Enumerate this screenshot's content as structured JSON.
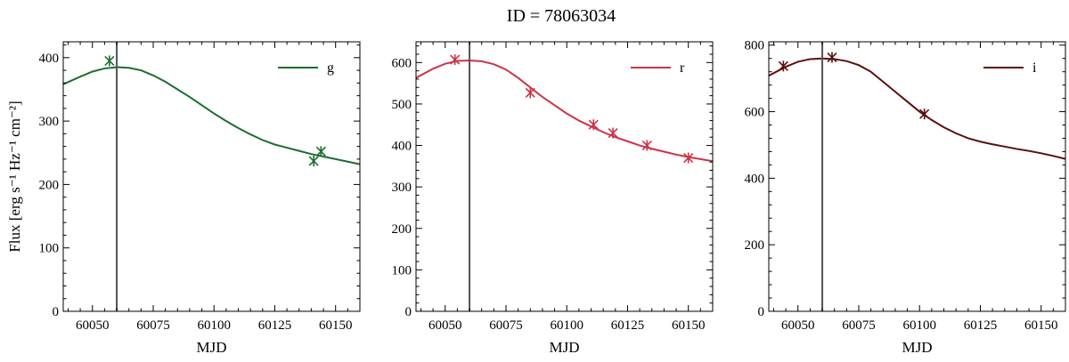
{
  "figure": {
    "title": "ID = 78063034"
  },
  "chart_data": [
    {
      "type": "line",
      "band": "g",
      "color": "#1b6e2f",
      "xlabel": "MJD",
      "ylabel": "Flux [erg s⁻¹ Hz⁻¹ cm⁻²]",
      "xlim": [
        60038,
        60160
      ],
      "ylim": [
        0,
        425
      ],
      "xticks": [
        60050,
        60075,
        60100,
        60125,
        60150
      ],
      "yticks": [
        0,
        100,
        200,
        300,
        400
      ],
      "peak_mjd": 60060,
      "legend": "g",
      "legend_position": "top-right",
      "grid": false,
      "model": {
        "x": [
          60038,
          60045,
          60050,
          60055,
          60060,
          60065,
          60070,
          60075,
          60080,
          60085,
          60090,
          60095,
          60100,
          60105,
          60110,
          60115,
          60120,
          60125,
          60130,
          60135,
          60140,
          60145,
          60150,
          60155,
          60160
        ],
        "y": [
          358,
          370,
          378,
          383,
          385,
          384,
          380,
          372,
          362,
          350,
          338,
          325,
          312,
          300,
          289,
          279,
          270,
          263,
          258,
          253,
          248,
          244,
          240,
          236,
          232
        ]
      },
      "observations": [
        {
          "x": 60057,
          "y": 395
        },
        {
          "x": 60141,
          "y": 237
        },
        {
          "x": 60144,
          "y": 252
        }
      ]
    },
    {
      "type": "line",
      "band": "r",
      "color": "#cc3344",
      "xlabel": "MJD",
      "ylabel": "",
      "xlim": [
        60038,
        60160
      ],
      "ylim": [
        0,
        650
      ],
      "xticks": [
        60050,
        60075,
        60100,
        60125,
        60150
      ],
      "yticks": [
        0,
        100,
        200,
        300,
        400,
        500,
        600
      ],
      "peak_mjd": 60060,
      "legend": "r",
      "legend_position": "top-right",
      "grid": false,
      "model": {
        "x": [
          60038,
          60045,
          60050,
          60055,
          60060,
          60065,
          60070,
          60075,
          60080,
          60085,
          60090,
          60095,
          60100,
          60105,
          60110,
          60115,
          60120,
          60125,
          60130,
          60135,
          60140,
          60145,
          60150,
          60155,
          60160
        ],
        "y": [
          563,
          585,
          597,
          604,
          605,
          603,
          596,
          583,
          563,
          540,
          517,
          497,
          477,
          460,
          446,
          432,
          420,
          410,
          400,
          392,
          385,
          378,
          372,
          367,
          362
        ]
      },
      "observations": [
        {
          "x": 60054,
          "y": 607
        },
        {
          "x": 60085,
          "y": 527
        },
        {
          "x": 60111,
          "y": 450
        },
        {
          "x": 60119,
          "y": 430
        },
        {
          "x": 60133,
          "y": 400
        },
        {
          "x": 60150,
          "y": 370
        }
      ]
    },
    {
      "type": "line",
      "band": "i",
      "color": "#5c0f0b",
      "xlabel": "MJD",
      "ylabel": "",
      "xlim": [
        60038,
        60160
      ],
      "ylim": [
        0,
        810
      ],
      "xticks": [
        60050,
        60075,
        60100,
        60125,
        60150
      ],
      "yticks": [
        0,
        200,
        400,
        600,
        800
      ],
      "peak_mjd": 60060,
      "legend": "i",
      "legend_position": "top-right",
      "grid": false,
      "model": {
        "x": [
          60038,
          60045,
          60050,
          60055,
          60060,
          60065,
          60070,
          60075,
          60080,
          60085,
          60090,
          60095,
          60100,
          60105,
          60110,
          60115,
          60120,
          60125,
          60130,
          60135,
          60140,
          60145,
          60150,
          60155,
          60160
        ],
        "y": [
          708,
          735,
          750,
          758,
          760,
          758,
          752,
          740,
          720,
          690,
          660,
          630,
          600,
          575,
          553,
          535,
          520,
          510,
          502,
          495,
          488,
          482,
          475,
          467,
          458
        ]
      },
      "observations": [
        {
          "x": 60044,
          "y": 737
        },
        {
          "x": 60064,
          "y": 763
        },
        {
          "x": 60102,
          "y": 593
        }
      ]
    }
  ]
}
